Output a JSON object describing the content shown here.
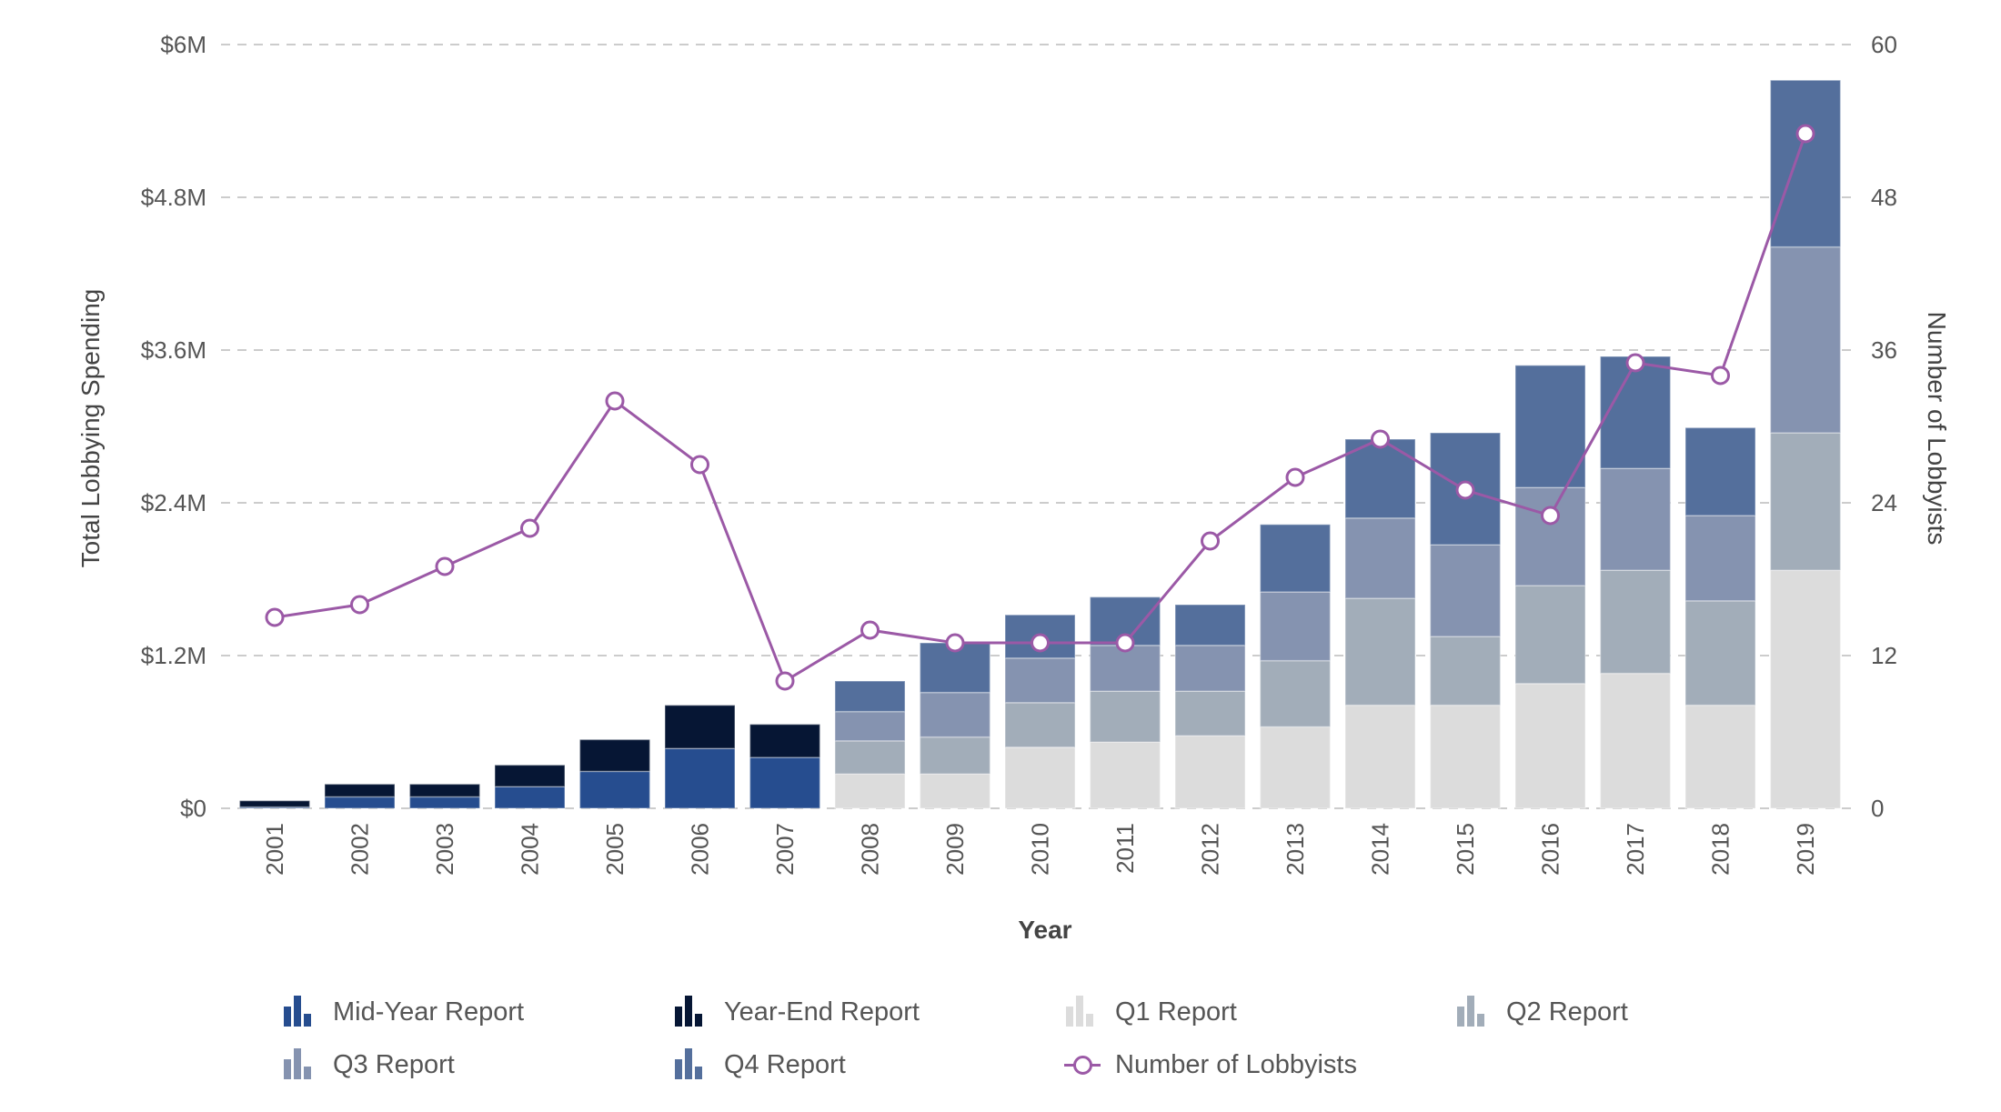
{
  "chart_data": {
    "type": "bar",
    "stacked": true,
    "title": "",
    "xlabel": "Year",
    "ylabel": "Total Lobbying Spending",
    "y2label": "Number of Lobbyists",
    "ylim": [
      0,
      6
    ],
    "y2lim": [
      0,
      60
    ],
    "y_unit": "$M",
    "y_ticks": [
      "$0",
      "$1.2M",
      "$2.4M",
      "$3.6M",
      "$4.8M",
      "$6M"
    ],
    "y_tick_values": [
      0,
      1.2,
      2.4,
      3.6,
      4.8,
      6
    ],
    "y2_ticks": [
      "0",
      "12",
      "24",
      "36",
      "48",
      "60"
    ],
    "y2_tick_values": [
      0,
      12,
      24,
      36,
      48,
      60
    ],
    "grid": true,
    "legend_position": "bottom",
    "categories": [
      "2001",
      "2002",
      "2003",
      "2004",
      "2005",
      "2006",
      "2007",
      "2008",
      "2009",
      "2010",
      "2011",
      "2012",
      "2013",
      "2014",
      "2015",
      "2016",
      "2017",
      "2018",
      "2019"
    ],
    "series": [
      {
        "name": "Mid-Year Report",
        "type": "bar",
        "axis": "left",
        "color": "#264d8f",
        "values": [
          0.01,
          0.09,
          0.09,
          0.17,
          0.29,
          0.47,
          0.4,
          0,
          0,
          0,
          0,
          0,
          0,
          0,
          0,
          0,
          0,
          0,
          0
        ]
      },
      {
        "name": "Year-End Report",
        "type": "bar",
        "axis": "left",
        "color": "#061634",
        "values": [
          0.05,
          0.1,
          0.1,
          0.17,
          0.25,
          0.34,
          0.26,
          0,
          0,
          0,
          0,
          0,
          0,
          0,
          0,
          0,
          0,
          0,
          0
        ]
      },
      {
        "name": "Q1 Report",
        "type": "bar",
        "axis": "left",
        "color": "#dcdcdc",
        "values": [
          0,
          0,
          0,
          0,
          0,
          0,
          0,
          0.27,
          0.27,
          0.48,
          0.52,
          0.57,
          0.64,
          0.81,
          0.81,
          0.98,
          1.06,
          0.81,
          1.87
        ]
      },
      {
        "name": "Q2 Report",
        "type": "bar",
        "axis": "left",
        "color": "#a2adb9",
        "values": [
          0,
          0,
          0,
          0,
          0,
          0,
          0,
          0.26,
          0.29,
          0.35,
          0.4,
          0.35,
          0.52,
          0.84,
          0.54,
          0.77,
          0.81,
          0.82,
          1.08
        ]
      },
      {
        "name": "Q3 Report",
        "type": "bar",
        "axis": "left",
        "color": "#8593b0",
        "values": [
          0,
          0,
          0,
          0,
          0,
          0,
          0,
          0.23,
          0.35,
          0.35,
          0.36,
          0.36,
          0.54,
          0.63,
          0.72,
          0.77,
          0.8,
          0.67,
          1.46
        ]
      },
      {
        "name": "Q4 Report",
        "type": "bar",
        "axis": "left",
        "color": "#546f9c",
        "values": [
          0,
          0,
          0,
          0,
          0,
          0,
          0,
          0.24,
          0.39,
          0.34,
          0.38,
          0.32,
          0.53,
          0.62,
          0.88,
          0.96,
          0.88,
          0.69,
          1.31
        ]
      },
      {
        "name": "Number of Lobbyists",
        "type": "line",
        "axis": "right",
        "color": "#9b59a6",
        "values": [
          15,
          16,
          19,
          22,
          32,
          27,
          10,
          14,
          13,
          13,
          13,
          21,
          26,
          29,
          25,
          23,
          35,
          34,
          53
        ]
      }
    ]
  },
  "legend": [
    {
      "label": "Mid-Year Report",
      "kind": "bar",
      "color": "#264d8f"
    },
    {
      "label": "Year-End Report",
      "kind": "bar",
      "color": "#061634"
    },
    {
      "label": "Q1 Report",
      "kind": "bar",
      "color": "#dcdcdc"
    },
    {
      "label": "Q2 Report",
      "kind": "bar",
      "color": "#a2adb9"
    },
    {
      "label": "Q3 Report",
      "kind": "bar",
      "color": "#8593b0"
    },
    {
      "label": "Q4 Report",
      "kind": "bar",
      "color": "#546f9c"
    },
    {
      "label": "Number of Lobbyists",
      "kind": "line",
      "color": "#9b59a6"
    }
  ]
}
